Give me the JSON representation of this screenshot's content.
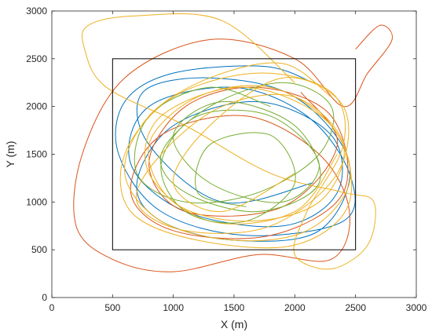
{
  "chart_data": {
    "type": "line",
    "title": "",
    "xlabel": "X (m)",
    "ylabel": "Y (m)",
    "xlim": [
      0,
      3000
    ],
    "ylim": [
      0,
      3000
    ],
    "xticks": [
      0,
      500,
      1000,
      1500,
      2000,
      2500,
      3000
    ],
    "yticks": [
      0,
      500,
      1000,
      1500,
      2000,
      2500,
      3000
    ],
    "xtick_labels": [
      "0",
      "500",
      "1000",
      "1500",
      "2000",
      "2500",
      "3000"
    ],
    "ytick_labels": [
      "0",
      "500",
      "1000",
      "1500",
      "2000",
      "2500",
      "3000"
    ],
    "grid": false,
    "legend": "none",
    "boundary": {
      "x": [
        500,
        2500
      ],
      "y": [
        500,
        2500
      ],
      "color": "#000000"
    },
    "series_colors": [
      "#0072BD",
      "#D95319",
      "#EDB120",
      "#77AC30",
      "#EDB120"
    ],
    "series": [
      {
        "color": "#0072BD",
        "x": [
          2150,
          1750,
          1000,
          600,
          550,
          900,
          1600,
          2400,
          2450,
          2100,
          1500,
          800,
          650,
          1100,
          1900,
          2350,
          2300,
          1700,
          1000,
          700,
          900,
          1500,
          2200,
          2450,
          2000,
          1300,
          750,
          800,
          1400,
          2150
        ],
        "y": [
          2250,
          2420,
          2350,
          2050,
          1500,
          900,
          650,
          800,
          1300,
          1900,
          2200,
          2000,
          1400,
          900,
          750,
          1100,
          1700,
          2050,
          1800,
          1200,
          800,
          600,
          700,
          1400,
          2100,
          2300,
          2150,
          1600,
          1000,
          1200
        ]
      },
      {
        "color": "#D95319",
        "x": [
          2500,
          2700,
          2800,
          2600,
          2400,
          2000,
          1300,
          600,
          250,
          200,
          500,
          1000,
          1700,
          2300,
          2450,
          2200,
          1600,
          900,
          650,
          1000,
          1800,
          2400,
          2300,
          1700,
          1100,
          800,
          1100,
          1900,
          2350,
          2050
        ],
        "y": [
          2600,
          2850,
          2700,
          2350,
          2000,
          2500,
          2700,
          2300,
          1500,
          750,
          400,
          270,
          450,
          400,
          900,
          1500,
          1900,
          1700,
          1100,
          700,
          650,
          1100,
          1900,
          2200,
          2000,
          1400,
          900,
          950,
          1600,
          2150
        ]
      },
      {
        "color": "#EDB120",
        "x": [
          2000,
          1400,
          700,
          300,
          270,
          450,
          1100,
          1800,
          2400,
          2650,
          2600,
          2300,
          2000,
          2100,
          2400,
          2300,
          1700,
          1000,
          600,
          650,
          1200,
          2000,
          2450,
          2300,
          1600,
          900,
          800,
          1300,
          2000,
          2350
        ],
        "y": [
          2250,
          2900,
          2950,
          2850,
          2600,
          2200,
          1800,
          1300,
          1100,
          1000,
          550,
          300,
          450,
          900,
          1600,
          2150,
          2350,
          2100,
          1500,
          900,
          600,
          550,
          1000,
          1800,
          2200,
          1900,
          1300,
          800,
          900,
          1500
        ]
      },
      {
        "color": "#77AC30",
        "x": [
          1800,
          1300,
          800,
          700,
          1100,
          1700,
          2200,
          2300,
          1900,
          1300,
          900,
          1100,
          1700,
          2200,
          2000,
          1400,
          1000,
          1300,
          1900,
          2200,
          1800,
          1200,
          900,
          1100,
          1600,
          2000,
          1800,
          1300,
          1200,
          1600
        ],
        "y": [
          2000,
          2200,
          1900,
          1300,
          1000,
          1100,
          1500,
          2000,
          2250,
          2000,
          1500,
          1100,
          900,
          1200,
          1800,
          2050,
          1700,
          1200,
          1000,
          1400,
          1900,
          1900,
          1400,
          900,
          800,
          1200,
          1700,
          1600,
          1100,
          950
        ]
      },
      {
        "color": "#EDB120",
        "x": [
          2300,
          1900,
          1300,
          800,
          600,
          900,
          1500,
          2100,
          2450,
          2300,
          1800,
          1200,
          800,
          1000,
          1600,
          2200,
          2400,
          2000,
          1400,
          900,
          700,
          1100,
          1800,
          2350,
          2400,
          1900,
          1300,
          1000,
          1400,
          2000
        ],
        "y": [
          2100,
          2450,
          2300,
          1900,
          1300,
          800,
          600,
          700,
          1200,
          1800,
          2200,
          2100,
          1600,
          1000,
          800,
          1000,
          1600,
          2100,
          2000,
          1500,
          1000,
          700,
          750,
          1300,
          2000,
          2300,
          1800,
          1200,
          900,
          1300
        ]
      }
    ]
  }
}
